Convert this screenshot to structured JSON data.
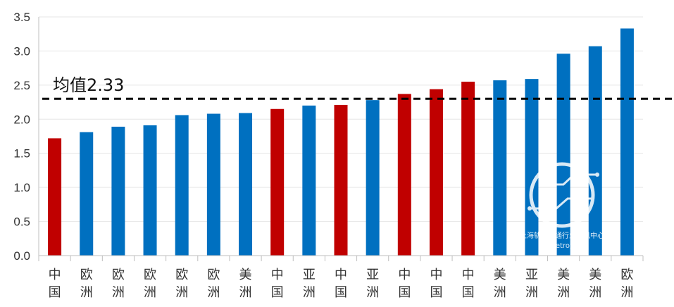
{
  "chart_data": {
    "type": "bar",
    "title": "",
    "xlabel": "",
    "ylabel": "",
    "ylim": [
      0,
      3.5
    ],
    "yticks": [
      "0.0",
      "0.5",
      "1.0",
      "1.5",
      "2.0",
      "2.5",
      "3.0",
      "3.5"
    ],
    "grid": true,
    "categories": [
      "中国",
      "欧洲",
      "欧洲",
      "欧洲",
      "欧洲",
      "欧洲",
      "美洲",
      "中国",
      "亚洲",
      "中国",
      "亚洲",
      "中国",
      "中国",
      "中国",
      "美洲",
      "亚洲",
      "美洲",
      "美洲",
      "欧洲"
    ],
    "values": [
      1.72,
      1.81,
      1.89,
      1.91,
      2.06,
      2.08,
      2.09,
      2.15,
      2.2,
      2.21,
      2.28,
      2.37,
      2.44,
      2.55,
      2.57,
      2.59,
      2.96,
      3.07,
      3.33
    ],
    "bar_colors": [
      "#c00000",
      "#0070c0",
      "#0070c0",
      "#0070c0",
      "#0070c0",
      "#0070c0",
      "#0070c0",
      "#c00000",
      "#0070c0",
      "#c00000",
      "#0070c0",
      "#c00000",
      "#c00000",
      "#c00000",
      "#0070c0",
      "#0070c0",
      "#0070c0",
      "#0070c0",
      "#0070c0"
    ],
    "reference_line": {
      "value": 2.3,
      "label": "均值2.33",
      "style": "dashed",
      "color": "#000000"
    }
  },
  "watermark": {
    "line1": "上海轨道交通行业资讯中心",
    "line2": "© Metro资讯"
  }
}
